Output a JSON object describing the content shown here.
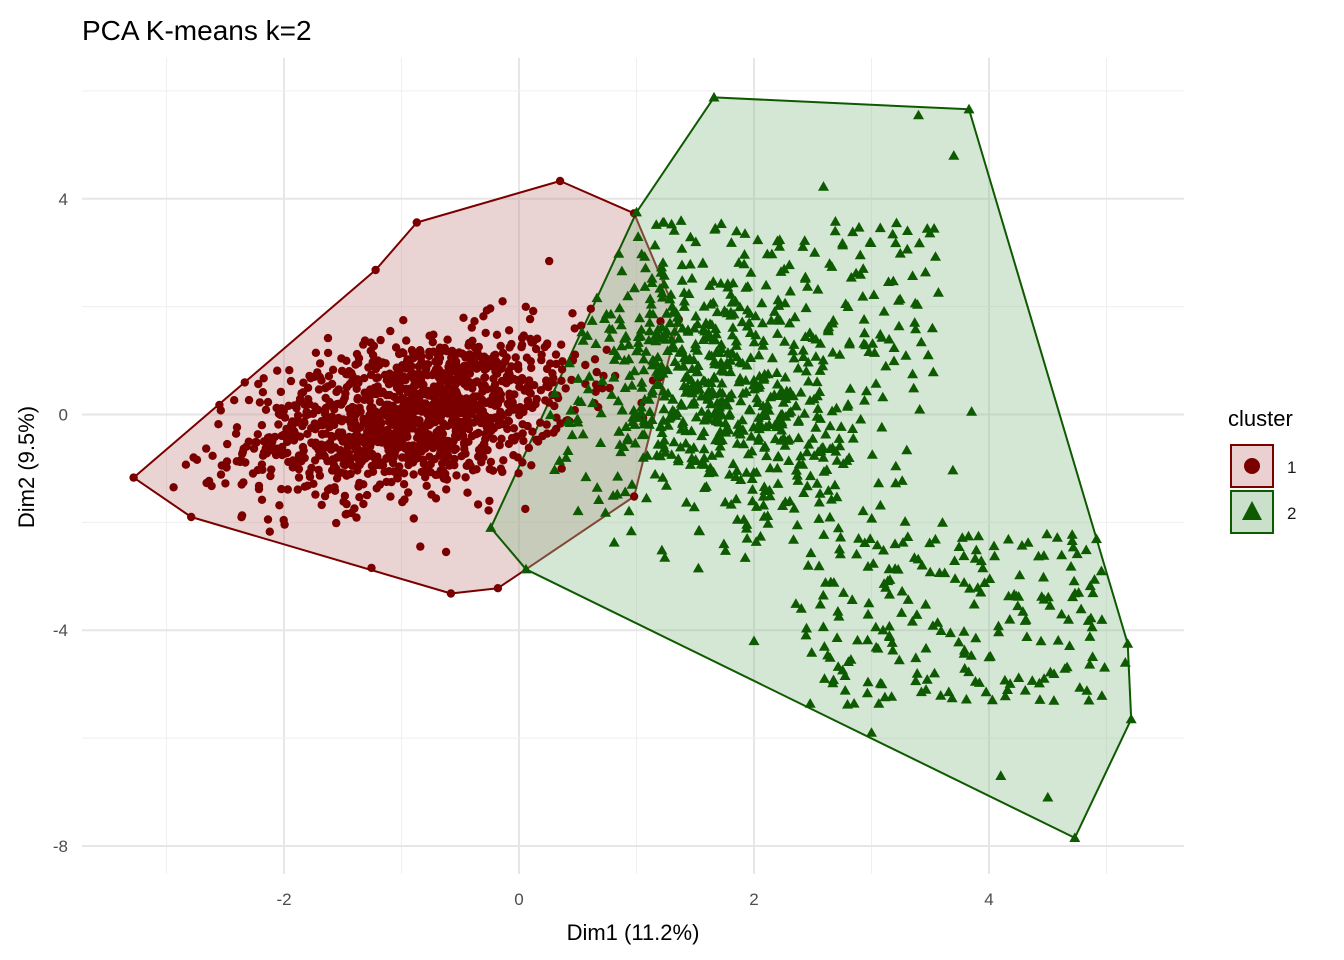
{
  "chart_data": {
    "type": "scatter",
    "title": "PCA K-means k=2",
    "xlabel": "Dim1 (11.2%)",
    "ylabel": "Dim2 (9.5%)",
    "xlim": [
      -3.5,
      5.6
    ],
    "ylim": [
      -8.5,
      6.0
    ],
    "x_ticks": [
      -2,
      0,
      2,
      4
    ],
    "y_ticks": [
      -8,
      -4,
      0,
      4
    ],
    "x_tick_labels": [
      "-2",
      "0",
      "2",
      "4"
    ],
    "y_tick_labels": [
      "-8",
      "-4",
      "0",
      "4"
    ],
    "grid": true,
    "legend": {
      "title": "cluster",
      "position": "right",
      "entries": [
        {
          "label": "1",
          "shape": "circle"
        },
        {
          "label": "2",
          "shape": "triangle"
        }
      ]
    },
    "series": [
      {
        "name": "1",
        "shape": "circle",
        "color": "#7a0000",
        "fill": "#c98c8c",
        "hull": [
          [
            -3.28,
            -1.17
          ],
          [
            -2.79,
            -1.9
          ],
          [
            -0.58,
            -3.32
          ],
          [
            -0.18,
            -3.22
          ],
          [
            0.98,
            -1.52
          ],
          [
            1.36,
            1.76
          ],
          [
            0.98,
            3.73
          ],
          [
            0.35,
            4.33
          ],
          [
            -0.87,
            3.56
          ],
          [
            -1.22,
            2.68
          ]
        ],
        "centroid": [
          -0.9,
          0.0
        ],
        "spread": [
          0.7,
          0.75
        ],
        "n_generated": 1300,
        "points": [
          [
            -3.28,
            -1.17
          ],
          [
            -2.79,
            -1.9
          ],
          [
            -0.58,
            -3.32
          ],
          [
            -0.18,
            -3.22
          ],
          [
            0.98,
            -1.52
          ],
          [
            1.36,
            1.76
          ],
          [
            0.98,
            3.73
          ],
          [
            0.35,
            4.33
          ],
          [
            -0.87,
            3.56
          ],
          [
            -1.22,
            2.68
          ],
          [
            -2.94,
            -1.35
          ],
          [
            -0.84,
            -2.45
          ],
          [
            -0.62,
            -2.55
          ],
          [
            -1.0,
            -0.2
          ],
          [
            -0.5,
            0.3
          ],
          [
            -1.5,
            -0.5
          ],
          [
            -0.2,
            0.8
          ],
          [
            -2.1,
            -0.6
          ],
          [
            0.2,
            -0.4
          ],
          [
            -1.2,
            1.0
          ]
        ]
      },
      {
        "name": "2",
        "shape": "triangle",
        "color": "#0e5a00",
        "fill": "#8fbc8f",
        "hull": [
          [
            -0.24,
            -2.1
          ],
          [
            0.06,
            -2.87
          ],
          [
            4.73,
            -7.85
          ],
          [
            5.21,
            -5.65
          ],
          [
            5.18,
            -4.25
          ],
          [
            3.83,
            5.66
          ],
          [
            1.66,
            5.88
          ],
          [
            1.0,
            3.75
          ]
        ],
        "centroid": [
          1.7,
          0.2
        ],
        "spread": [
          0.75,
          1.15
        ],
        "n_generated": 1000,
        "points": [
          [
            -0.24,
            -2.1
          ],
          [
            0.06,
            -2.87
          ],
          [
            4.73,
            -7.85
          ],
          [
            5.21,
            -5.65
          ],
          [
            5.18,
            -4.25
          ],
          [
            3.83,
            5.66
          ],
          [
            1.66,
            5.88
          ],
          [
            1.0,
            3.75
          ],
          [
            3.4,
            5.55
          ],
          [
            3.7,
            4.8
          ],
          [
            4.5,
            -7.1
          ],
          [
            4.1,
            -6.7
          ],
          [
            4.85,
            -5.3
          ],
          [
            5.16,
            -4.6
          ],
          [
            3.0,
            -5.9
          ],
          [
            2.6,
            -4.9
          ],
          [
            2.0,
            -4.2
          ],
          [
            4.0,
            -4.5
          ],
          [
            3.2,
            -2.4
          ],
          [
            1.5,
            0.5
          ]
        ]
      }
    ]
  }
}
